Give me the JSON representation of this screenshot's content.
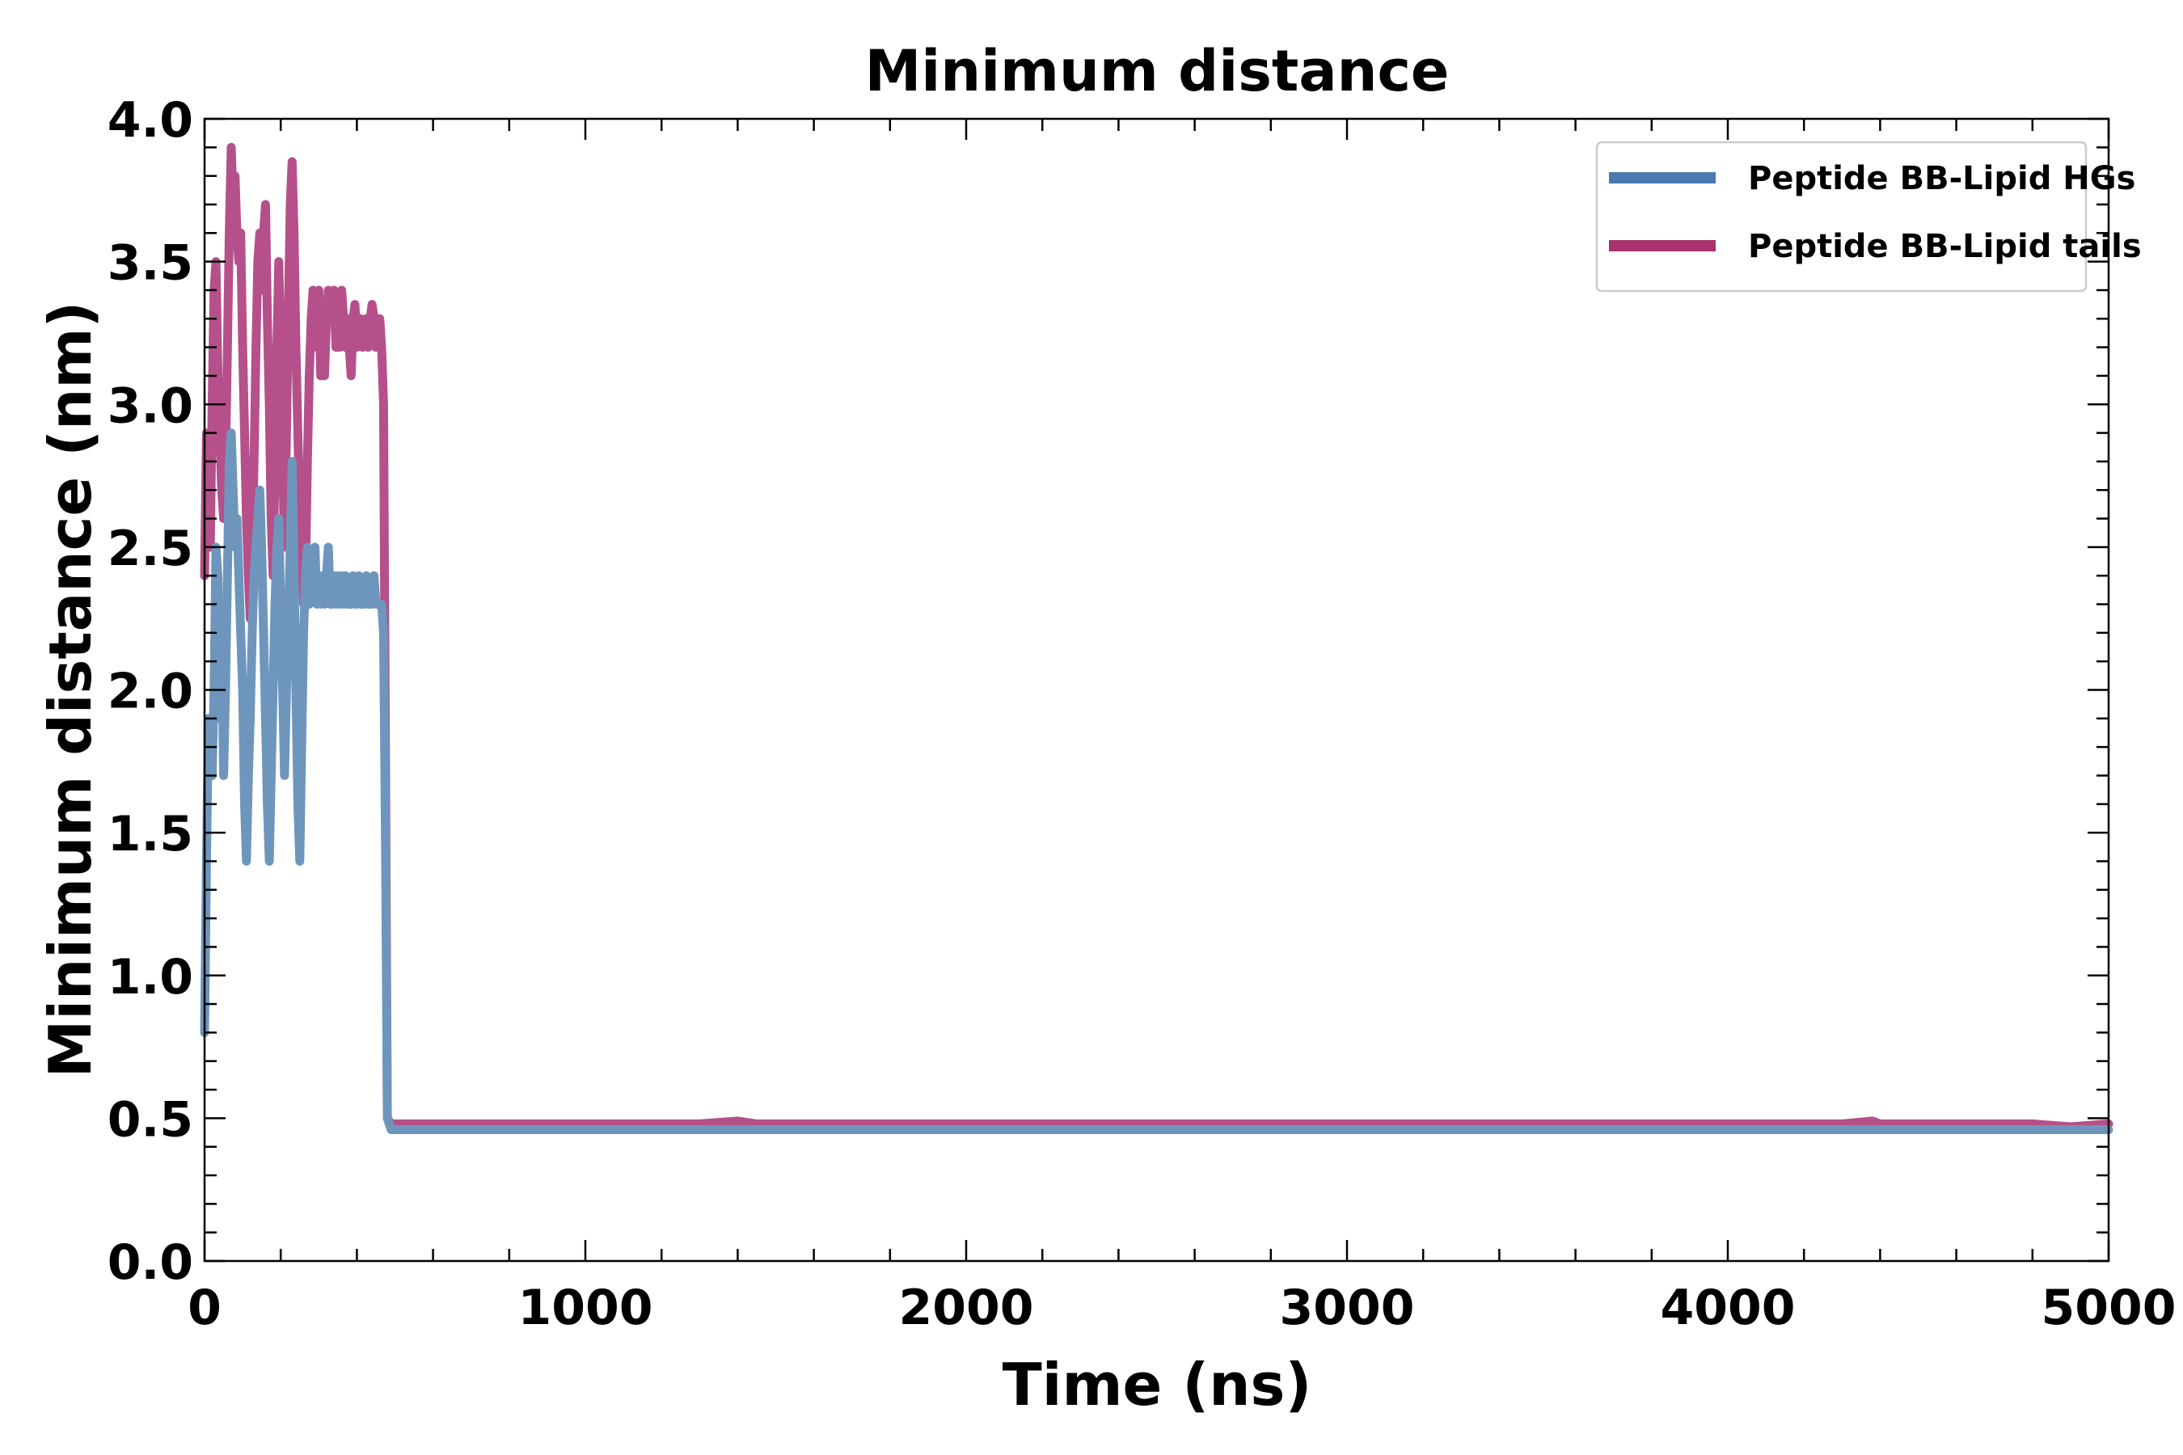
{
  "chart_data": {
    "type": "line",
    "title": "Minimum distance",
    "xlabel": "Time (ns)",
    "ylabel": "Minimum distance (nm)",
    "xlim": [
      0,
      5000
    ],
    "ylim": [
      0.0,
      4.0
    ],
    "xticks": [
      0,
      1000,
      2000,
      3000,
      4000,
      5000
    ],
    "xtick_labels": [
      "0",
      "1000",
      "2000",
      "3000",
      "4000",
      "5000"
    ],
    "yticks": [
      0.0,
      0.5,
      1.0,
      1.5,
      2.0,
      2.5,
      3.0,
      3.5,
      4.0
    ],
    "ytick_labels": [
      "0.0",
      "0.5",
      "1.0",
      "1.5",
      "2.0",
      "2.5",
      "3.0",
      "3.5",
      "4.0"
    ],
    "grid": false,
    "legend_position": "top-right",
    "series": [
      {
        "name": "Peptide BB-Lipid tails",
        "color": "#b5508a",
        "legend_color": "#a8336f",
        "x": [
          0,
          5,
          10,
          15,
          20,
          25,
          30,
          35,
          40,
          45,
          50,
          55,
          60,
          65,
          70,
          75,
          80,
          85,
          90,
          95,
          100,
          105,
          110,
          115,
          120,
          125,
          130,
          135,
          140,
          145,
          150,
          155,
          160,
          165,
          170,
          175,
          180,
          185,
          190,
          195,
          200,
          205,
          210,
          215,
          220,
          225,
          230,
          235,
          240,
          245,
          250,
          255,
          260,
          265,
          270,
          275,
          280,
          285,
          290,
          295,
          300,
          305,
          310,
          315,
          320,
          325,
          330,
          335,
          340,
          345,
          350,
          355,
          360,
          365,
          370,
          375,
          380,
          385,
          390,
          395,
          400,
          405,
          410,
          415,
          420,
          425,
          430,
          435,
          440,
          445,
          450,
          455,
          460,
          465,
          470,
          475,
          480,
          490,
          500,
          600,
          700,
          800,
          900,
          1000,
          1100,
          1200,
          1300,
          1400,
          1450,
          1500,
          1600,
          1700,
          1800,
          1900,
          2000,
          2100,
          2200,
          2300,
          2400,
          2500,
          2600,
          2700,
          2800,
          2900,
          3000,
          3100,
          3200,
          3300,
          3400,
          3500,
          3600,
          3700,
          3800,
          3900,
          4000,
          4100,
          4200,
          4300,
          4380,
          4400,
          4500,
          4600,
          4700,
          4800,
          4900,
          5000
        ],
        "values": [
          2.4,
          2.9,
          2.6,
          2.5,
          3.0,
          3.4,
          3.5,
          3.1,
          2.9,
          2.7,
          2.6,
          2.8,
          3.2,
          3.6,
          3.9,
          3.7,
          3.8,
          3.6,
          3.5,
          3.6,
          3.2,
          2.9,
          2.6,
          2.4,
          2.25,
          2.5,
          2.8,
          3.2,
          3.5,
          3.6,
          3.4,
          3.6,
          3.7,
          3.3,
          3.0,
          2.6,
          2.4,
          2.8,
          3.2,
          3.5,
          3.2,
          2.8,
          2.5,
          2.9,
          3.3,
          3.7,
          3.85,
          3.6,
          3.2,
          2.9,
          2.6,
          2.5,
          2.3,
          2.4,
          2.8,
          3.1,
          3.3,
          3.4,
          3.3,
          3.2,
          3.4,
          3.1,
          3.3,
          3.1,
          3.3,
          3.4,
          3.3,
          3.3,
          3.4,
          3.2,
          3.35,
          3.2,
          3.4,
          3.3,
          3.2,
          3.3,
          3.2,
          3.1,
          3.3,
          3.35,
          3.2,
          3.3,
          3.3,
          3.2,
          3.25,
          3.3,
          3.2,
          3.3,
          3.35,
          3.3,
          3.2,
          3.3,
          3.3,
          3.2,
          3.0,
          1.8,
          0.5,
          0.48,
          0.48,
          0.48,
          0.48,
          0.48,
          0.48,
          0.48,
          0.48,
          0.48,
          0.48,
          0.49,
          0.48,
          0.48,
          0.48,
          0.48,
          0.48,
          0.48,
          0.48,
          0.48,
          0.48,
          0.48,
          0.48,
          0.48,
          0.48,
          0.48,
          0.48,
          0.48,
          0.48,
          0.48,
          0.48,
          0.48,
          0.48,
          0.48,
          0.48,
          0.48,
          0.48,
          0.48,
          0.48,
          0.48,
          0.48,
          0.48,
          0.49,
          0.48,
          0.48,
          0.48,
          0.48,
          0.48,
          0.47,
          0.48
        ]
      },
      {
        "name": "Peptide BB-Lipid HGs",
        "color": "#6e96bd",
        "legend_color": "#4a7aaf",
        "x": [
          0,
          5,
          10,
          15,
          20,
          25,
          30,
          35,
          40,
          45,
          50,
          55,
          60,
          65,
          70,
          75,
          80,
          85,
          90,
          95,
          100,
          105,
          110,
          115,
          120,
          125,
          130,
          135,
          140,
          145,
          150,
          155,
          160,
          165,
          170,
          175,
          180,
          185,
          190,
          195,
          200,
          205,
          210,
          215,
          220,
          225,
          230,
          235,
          240,
          245,
          250,
          255,
          260,
          265,
          270,
          275,
          280,
          285,
          290,
          295,
          300,
          305,
          310,
          315,
          320,
          325,
          330,
          335,
          340,
          345,
          350,
          355,
          360,
          365,
          370,
          375,
          380,
          385,
          390,
          395,
          400,
          405,
          410,
          415,
          420,
          425,
          430,
          435,
          440,
          445,
          450,
          455,
          460,
          465,
          470,
          475,
          480,
          490,
          500,
          600,
          700,
          800,
          900,
          1000,
          1100,
          1200,
          1300,
          1400,
          1500,
          1600,
          1700,
          1800,
          1900,
          2000,
          2100,
          2200,
          2300,
          2400,
          2500,
          2600,
          2700,
          2800,
          2900,
          3000,
          3100,
          3200,
          3300,
          3400,
          3500,
          3600,
          3700,
          3800,
          3900,
          4000,
          4100,
          4200,
          4300,
          4400,
          4500,
          4600,
          4700,
          4800,
          4900,
          5000
        ],
        "values": [
          0.8,
          1.4,
          1.9,
          1.8,
          1.7,
          2.0,
          2.5,
          2.4,
          1.9,
          2.2,
          1.7,
          2.0,
          2.4,
          2.8,
          2.9,
          2.7,
          2.5,
          2.6,
          2.4,
          2.2,
          2.0,
          1.6,
          1.4,
          1.7,
          1.9,
          2.2,
          2.4,
          2.5,
          2.6,
          2.7,
          2.5,
          2.2,
          1.9,
          1.6,
          1.4,
          1.7,
          2.0,
          2.3,
          2.5,
          2.6,
          2.3,
          2.0,
          1.7,
          2.0,
          2.2,
          2.5,
          2.8,
          2.4,
          2.0,
          1.6,
          1.4,
          1.8,
          2.2,
          2.4,
          2.5,
          2.3,
          2.4,
          2.4,
          2.5,
          2.3,
          2.4,
          2.3,
          2.4,
          2.3,
          2.4,
          2.5,
          2.3,
          2.3,
          2.4,
          2.3,
          2.4,
          2.3,
          2.4,
          2.3,
          2.4,
          2.3,
          2.3,
          2.3,
          2.4,
          2.3,
          2.3,
          2.4,
          2.3,
          2.3,
          2.3,
          2.4,
          2.3,
          2.3,
          2.3,
          2.4,
          2.3,
          2.3,
          2.3,
          2.3,
          2.2,
          1.5,
          0.5,
          0.46,
          0.46,
          0.46,
          0.46,
          0.46,
          0.46,
          0.46,
          0.46,
          0.46,
          0.46,
          0.46,
          0.46,
          0.46,
          0.46,
          0.46,
          0.46,
          0.46,
          0.46,
          0.46,
          0.46,
          0.46,
          0.46,
          0.46,
          0.46,
          0.46,
          0.46,
          0.46,
          0.46,
          0.46,
          0.46,
          0.46,
          0.46,
          0.46,
          0.46,
          0.46,
          0.46,
          0.46,
          0.46,
          0.46,
          0.46,
          0.46,
          0.46,
          0.46,
          0.46,
          0.46,
          0.46,
          0.46
        ]
      }
    ]
  }
}
